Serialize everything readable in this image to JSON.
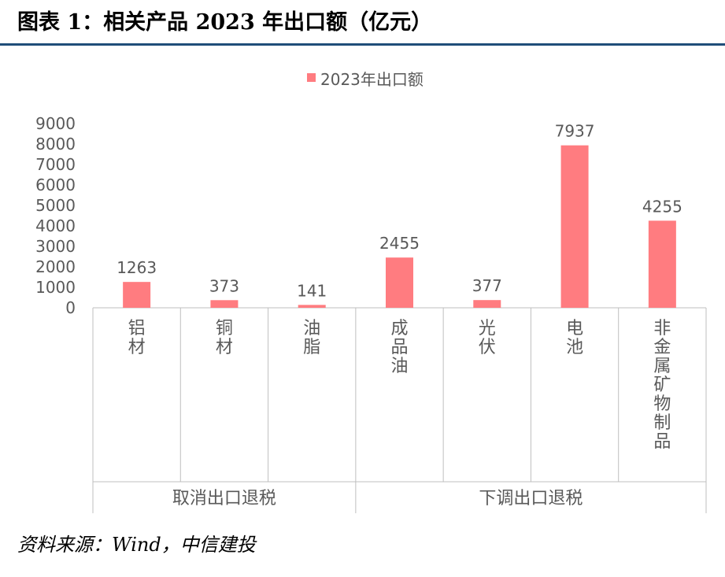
{
  "header": {
    "figure_label": "图表 1：",
    "title": "相关产品 2023 年出口额（亿元）"
  },
  "source": "资料来源：Wind，中信建投",
  "chart_data": {
    "type": "bar",
    "legend": {
      "label": "2023年出口额",
      "position": "top"
    },
    "categories": [
      "铝材",
      "铜材",
      "油脂",
      "成品油",
      "光伏",
      "电池",
      "非金属矿物制品"
    ],
    "values": [
      1263,
      373,
      141,
      2455,
      377,
      7937,
      4255
    ],
    "data_labels": [
      "1263",
      "373",
      "141",
      "2455",
      "377",
      "7937",
      "4255"
    ],
    "groups": [
      {
        "label": "取消出口退税",
        "count": 3
      },
      {
        "label": "下调出口退税",
        "count": 4
      }
    ],
    "ylim": [
      0,
      9000
    ],
    "yticks": [
      "0",
      "1000",
      "2000",
      "3000",
      "4000",
      "5000",
      "6000",
      "7000",
      "8000",
      "9000"
    ],
    "grid": false,
    "bar_color": "#ff7c80",
    "axis_color": "#bfbfbf",
    "text_color": "#595959"
  }
}
